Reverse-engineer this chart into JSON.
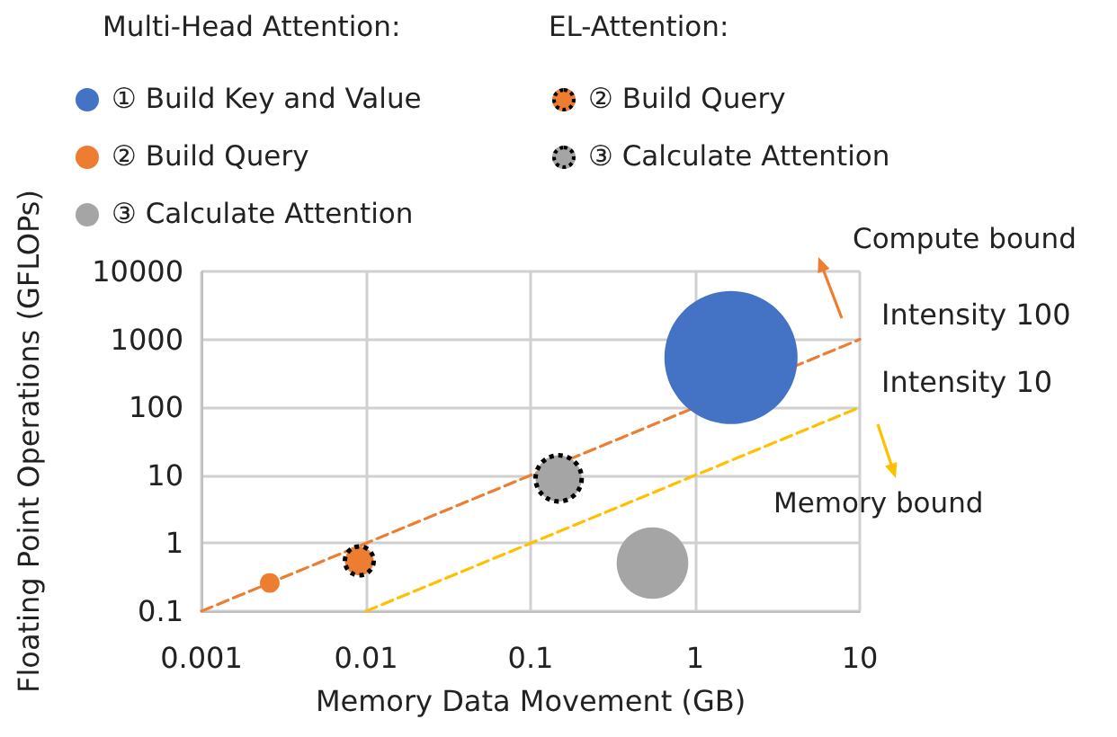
{
  "chart_data": {
    "type": "bubble",
    "xlabel": "Memory Data Movement (GB)",
    "ylabel": "Floating Point Operations (GFLOPs)",
    "log": "xy",
    "xlim": [
      0.001,
      10
    ],
    "ylim": [
      0.1,
      10000
    ],
    "xticks": [
      0.001,
      0.01,
      0.1,
      1,
      10
    ],
    "yticks": [
      0.1,
      1,
      10,
      100,
      1000,
      10000
    ],
    "grid": true,
    "legend": "top",
    "annotations": [
      "Multi-Head Attention:",
      "EL-Attention:",
      "Compute bound",
      "Memory bound"
    ],
    "series": [
      {
        "name": "① Build Key and Value",
        "color": "#4472c4",
        "x": [
          1.65
        ],
        "values": [
          540
        ],
        "sizes": [
          1
        ]
      },
      {
        "name": "② Build Query",
        "color": "#ed7d31",
        "x": [
          0.0026
        ],
        "values": [
          0.26
        ],
        "sizes": [
          0.022
        ]
      },
      {
        "name": "③ Calculate Attention",
        "color": "#a5a5a5",
        "x": [
          0.55
        ],
        "values": [
          0.51
        ],
        "sizes": [
          0.29
        ]
      },
      {
        "name": "② Build Query",
        "color": "#ed7d31",
        "x": [
          0.0091
        ],
        "values": [
          0.55
        ],
        "sizes": [
          0.047
        ],
        "line_style": "dotted"
      },
      {
        "name": "③ Calculate Attention",
        "color": "#a5a5a5",
        "x": [
          0.148
        ],
        "values": [
          9
        ],
        "sizes": [
          0.12
        ],
        "line_style": "dotted"
      },
      {
        "name": "Intensity 100",
        "type": "line",
        "color": "#ed7d31",
        "x": [
          0.001,
          10
        ],
        "values": [
          0.1,
          1000
        ],
        "marker": "none",
        "line_style": "dashed"
      },
      {
        "name": "Intensity 10",
        "type": "line",
        "color": "#ffc000",
        "x": [
          0.01,
          10
        ],
        "values": [
          0.1,
          100
        ],
        "marker": "none",
        "line_style": "dashed"
      }
    ]
  }
}
